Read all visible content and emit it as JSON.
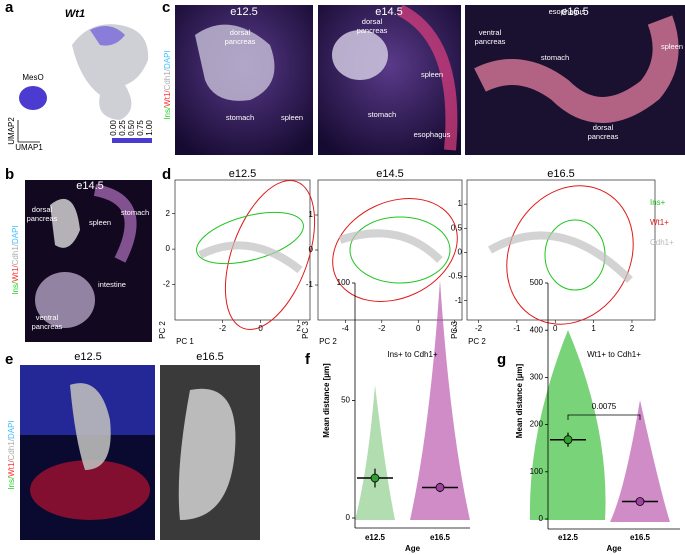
{
  "panels": {
    "a": {
      "label": "a",
      "title": "Wt1",
      "cluster": "MesO",
      "axis_y": "UMAP2",
      "axis_x": "UMAP1",
      "colorbar": [
        "1.00",
        "0.75",
        "0.50",
        "0.25",
        "0.00"
      ]
    },
    "b": {
      "label": "b",
      "title": "e14.5",
      "stain": [
        "Ins/",
        "Wt1/",
        "Cdh1/",
        "DAPI"
      ],
      "tags": [
        [
          "spleen"
        ],
        [
          "stomach"
        ],
        [
          "dorsal",
          "pancreas"
        ],
        [
          "intestine"
        ],
        [
          "ventral",
          "pancreas"
        ]
      ]
    },
    "c": {
      "label": "c",
      "stain": [
        "Ins/",
        "Wt1/",
        "Cdh1/",
        "DAPI"
      ],
      "images": [
        {
          "title": "e12.5",
          "tags": [
            [
              "dorsal",
              "pancreas"
            ],
            [
              "stomach"
            ],
            [
              "spleen"
            ]
          ]
        },
        {
          "title": "e14.5",
          "tags": [
            [
              "dorsal",
              "pancreas"
            ],
            [
              "spleen"
            ],
            [
              "stomach"
            ],
            [
              "esophagus"
            ]
          ]
        },
        {
          "title": "e16.5",
          "tags": [
            [
              "ventral",
              "pancreas"
            ],
            [
              "esophagus"
            ],
            [
              "stomach"
            ],
            [
              "spleen"
            ],
            [
              "dorsal",
              "pancreas"
            ]
          ]
        }
      ]
    },
    "d": {
      "label": "d",
      "legend": [
        {
          "name": "Ins+",
          "color": "#22c422"
        },
        {
          "name": "Wt1+",
          "color": "#e01a1a"
        },
        {
          "name": "Cdh1+",
          "color": "#b8b8b8"
        }
      ],
      "plots": [
        {
          "title": "e12.5",
          "x_label": "PC 1",
          "y_label": "PC 2",
          "xlim": [
            -4.5,
            2.6
          ],
          "ylim": [
            -4,
            3.9
          ],
          "xticks": [
            -2,
            0,
            2
          ],
          "yticks": [
            2,
            0,
            -2
          ]
        },
        {
          "title": "e14.5",
          "x_label": "PC 2",
          "y_label": "PC 3",
          "xlim": [
            -5.5,
            2.4
          ],
          "ylim": [
            -2,
            2
          ],
          "xticks": [
            -4,
            -2,
            0,
            2
          ],
          "yticks": [
            1,
            0,
            -1
          ]
        },
        {
          "title": "e16.5",
          "x_label": "PC 2",
          "y_label": "PC 3",
          "xlim": [
            -2.3,
            2.6
          ],
          "ylim": [
            -1.4,
            1.5
          ],
          "xticks": [
            -2,
            -1,
            0,
            1,
            2
          ],
          "yticks": [
            1,
            0.5,
            0,
            -0.5,
            -1
          ]
        }
      ]
    },
    "e": {
      "label": "e",
      "stain": [
        "Ins/",
        "Wt1/",
        "Cdh1/",
        "DAPI"
      ],
      "titles": [
        "e12.5",
        "e16.5"
      ]
    },
    "f": {
      "label": "f",
      "title": "Ins+ to Cdh1+",
      "y_label": "Mean distance [µm]",
      "x_label": "Age",
      "categories": [
        "e12.5",
        "e16.5"
      ],
      "means": [
        17,
        13
      ],
      "sem": [
        4,
        2
      ],
      "ylim": [
        0,
        100
      ],
      "yticks": [
        0,
        50,
        100
      ]
    },
    "g": {
      "label": "g",
      "title": "Wt1+ to Cdh1+",
      "y_label": "Mean distance [µm]",
      "x_label": "Age",
      "categories": [
        "e12.5",
        "e16.5"
      ],
      "means": [
        168,
        37
      ],
      "sem": [
        15,
        5
      ],
      "ylim": [
        0,
        500
      ],
      "yticks": [
        0,
        100,
        200,
        300,
        400,
        500
      ],
      "p_value": "0.0075"
    }
  }
}
